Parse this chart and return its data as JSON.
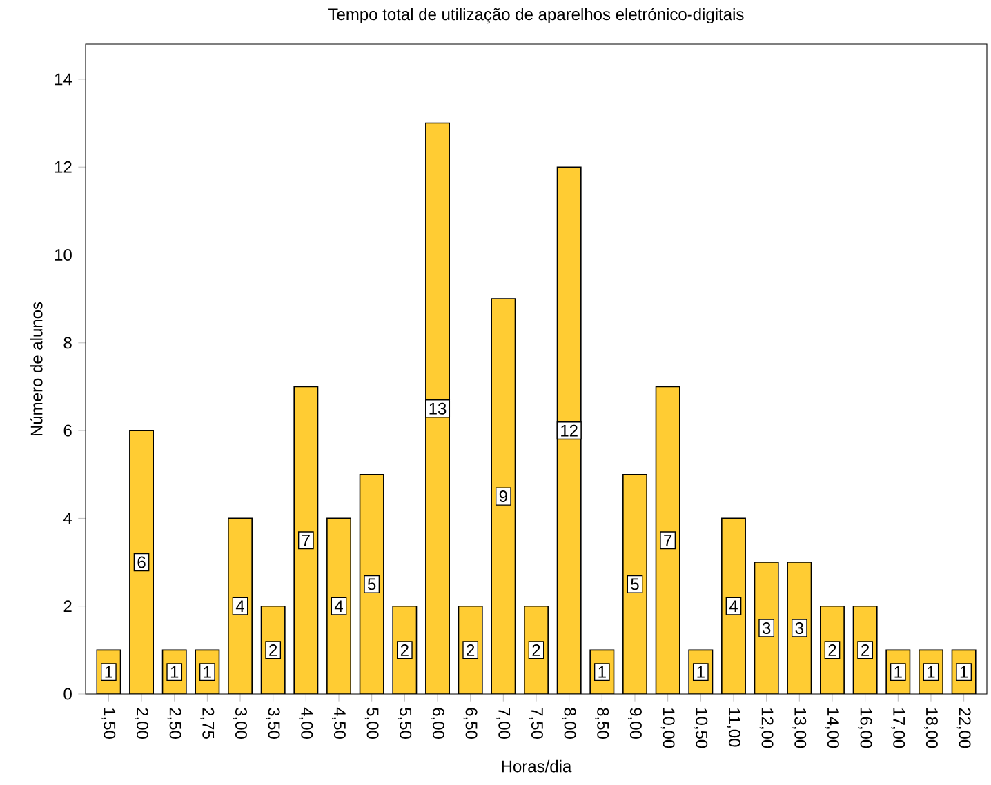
{
  "chart_data": {
    "type": "bar",
    "title": "Tempo total de utilização de aparelhos eletrónico-digitais",
    "xlabel": "Horas/dia",
    "ylabel": "Número de alunos",
    "categories": [
      "1,50",
      "2,00",
      "2,50",
      "2,75",
      "3,00",
      "3,50",
      "4,00",
      "4,50",
      "5,00",
      "5,50",
      "6,00",
      "6,50",
      "7,00",
      "7,50",
      "8,00",
      "8,50",
      "9,00",
      "10,00",
      "10,50",
      "11,00",
      "12,00",
      "13,00",
      "14,00",
      "16,00",
      "17,00",
      "18,00",
      "22,00"
    ],
    "values": [
      1,
      6,
      1,
      1,
      4,
      2,
      7,
      4,
      5,
      2,
      13,
      2,
      9,
      2,
      12,
      1,
      5,
      7,
      1,
      4,
      3,
      3,
      2,
      2,
      1,
      1,
      1
    ],
    "color": "#ffcc33",
    "ylim": [
      0,
      14.8
    ],
    "yticks": [
      0,
      2,
      4,
      6,
      8,
      10,
      12,
      14
    ],
    "data_labels": true
  }
}
